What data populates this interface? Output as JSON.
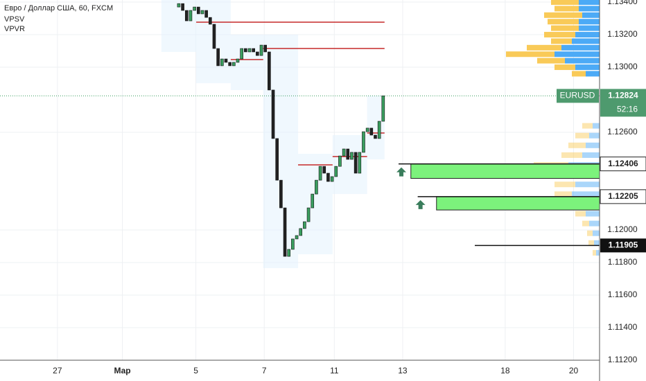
{
  "chart_data": {
    "type": "candlestick",
    "title": "Евро / Доллар США, 60, FXCM",
    "indicators": [
      "VPSV",
      "VPVR"
    ],
    "up_color": "#3a9e5f",
    "down_color": "#222222",
    "ylim": [
      1.112,
      1.13413
    ],
    "yticks": [
      {
        "value": 1.134,
        "label": "1.13400"
      },
      {
        "value": 1.132,
        "label": "1.13200"
      },
      {
        "value": 1.13,
        "label": "1.13000"
      },
      {
        "value": 1.126,
        "label": "1.12600"
      },
      {
        "value": 1.12,
        "label": "1.12000"
      },
      {
        "value": 1.118,
        "label": "1.11800"
      },
      {
        "value": 1.116,
        "label": "1.11600"
      },
      {
        "value": 1.114,
        "label": "1.11400"
      },
      {
        "value": 1.112,
        "label": "1.11200"
      }
    ],
    "xlim": [
      -1.68,
      15.86
    ],
    "xticks": [
      {
        "value": 0,
        "label": "27"
      },
      {
        "value": 1.9,
        "label": "Мар"
      },
      {
        "value": 4.05,
        "label": "5"
      },
      {
        "value": 6.05,
        "label": "7"
      },
      {
        "value": 8.1,
        "label": "11"
      },
      {
        "value": 10.1,
        "label": "13"
      },
      {
        "value": 13.1,
        "label": "18"
      },
      {
        "value": 15.1,
        "label": "20"
      }
    ],
    "x": [
      3.55,
      3.665,
      3.78,
      3.895,
      4.01,
      4.125,
      4.24,
      4.355,
      4.47,
      4.585,
      4.7,
      4.815,
      4.93,
      5.045,
      5.16,
      5.275,
      5.39,
      5.505,
      5.62,
      5.735,
      5.85,
      5.965,
      6.08,
      6.195,
      6.31,
      6.425,
      6.54,
      6.655,
      6.77,
      6.885,
      7.0,
      7.115,
      7.23,
      7.345,
      7.46,
      7.575,
      7.69,
      7.805,
      7.92,
      8.035,
      8.15,
      8.265,
      8.38,
      8.495,
      8.61,
      8.725,
      8.84,
      8.955,
      9.07,
      9.185,
      9.3,
      9.415,
      9.53
    ],
    "open": [
      1.1337,
      1.13391,
      1.13349,
      1.13285,
      1.13349,
      1.1337,
      1.13328,
      1.13349,
      1.13306,
      1.13264,
      1.13115,
      1.13009,
      1.13051,
      1.1303,
      1.13009,
      1.1303,
      1.13051,
      1.13115,
      1.13094,
      1.13115,
      1.13094,
      1.13072,
      1.13136,
      1.13094,
      1.1286,
      1.12562,
      1.12306,
      1.12136,
      1.11838,
      1.11881,
      1.11945,
      1.11966,
      1.12009,
      1.12051,
      1.12136,
      1.12221,
      1.12306,
      1.12391,
      1.12349,
      1.12298,
      1.12328,
      1.12391,
      1.12455,
      1.12498,
      1.12434,
      1.12477,
      1.12349,
      1.12477,
      1.12604,
      1.12626,
      1.12583,
      1.12562,
      1.12668
    ],
    "close": [
      1.13391,
      1.13349,
      1.13285,
      1.13349,
      1.1337,
      1.13328,
      1.13349,
      1.13306,
      1.13264,
      1.13115,
      1.13009,
      1.13051,
      1.1303,
      1.13009,
      1.1303,
      1.13051,
      1.13115,
      1.13094,
      1.13115,
      1.13094,
      1.13072,
      1.13136,
      1.13094,
      1.1286,
      1.12562,
      1.12306,
      1.12136,
      1.11838,
      1.11881,
      1.11945,
      1.11966,
      1.12009,
      1.12051,
      1.12136,
      1.12221,
      1.12306,
      1.12391,
      1.12349,
      1.12298,
      1.12328,
      1.12391,
      1.12455,
      1.12498,
      1.12434,
      1.12477,
      1.12349,
      1.12477,
      1.12604,
      1.12626,
      1.12583,
      1.12562,
      1.12668,
      1.12824
    ],
    "sessions": [
      {
        "x0": 3.04,
        "x1": 4.06,
        "high": 1.13413,
        "low": 1.13094
      },
      {
        "x0": 4.06,
        "x1": 5.07,
        "high": 1.13413,
        "low": 1.12902
      },
      {
        "x0": 5.07,
        "x1": 6.02,
        "high": 1.132,
        "low": 1.1286
      },
      {
        "x0": 6.02,
        "x1": 7.04,
        "high": 1.132,
        "low": 1.11766
      },
      {
        "x0": 7.04,
        "x1": 8.05,
        "high": 1.12468,
        "low": 1.11851
      },
      {
        "x0": 8.05,
        "x1": 9.06,
        "high": 1.12583,
        "low": 1.12221
      },
      {
        "x0": 9.06,
        "x1": 9.57,
        "high": 1.12826,
        "low": 1.12434
      }
    ],
    "poc_lines": [
      {
        "x0": 4.06,
        "x1": 9.57,
        "price": 1.13277
      },
      {
        "x0": 6.02,
        "x1": 9.57,
        "price": 1.13115
      },
      {
        "x0": 5.07,
        "x1": 6.02,
        "price": 1.13047
      },
      {
        "x0": 7.04,
        "x1": 8.05,
        "price": 1.124
      },
      {
        "x0": 8.05,
        "x1": 9.06,
        "price": 1.12451
      },
      {
        "x0": 9.06,
        "x1": 9.57,
        "price": 1.12596
      }
    ],
    "zones": [
      {
        "x0": 9.98,
        "box_x0": 10.34,
        "top": 1.12406,
        "bottom": 1.12317,
        "label": "1.12406"
      },
      {
        "x0": 10.54,
        "box_x0": 11.09,
        "top": 1.12205,
        "bottom": 1.12123,
        "label": "1.12205"
      }
    ],
    "level": {
      "x0": 12.21,
      "price": 1.11905,
      "label": "1.11905"
    },
    "last_price": {
      "symbol": "EURUSD",
      "value": 1.12824,
      "label": "1.12824",
      "countdown": "52:16"
    },
    "profile_xlim": [
      0,
      140
    ],
    "profile_colors": {
      "buy": "#42a5f5",
      "sell": "#f9c74f"
    },
    "profile": [
      {
        "price": 1.134,
        "buy": 30,
        "sell": 40
      },
      {
        "price": 1.1336,
        "buy": 30,
        "sell": 35
      },
      {
        "price": 1.1332,
        "buy": 25,
        "sell": 55
      },
      {
        "price": 1.1328,
        "buy": 30,
        "sell": 45
      },
      {
        "price": 1.1324,
        "buy": 30,
        "sell": 40
      },
      {
        "price": 1.132,
        "buy": 35,
        "sell": 45
      },
      {
        "price": 1.1316,
        "buy": 40,
        "sell": 30
      },
      {
        "price": 1.1312,
        "buy": 55,
        "sell": 50
      },
      {
        "price": 1.1308,
        "buy": 65,
        "sell": 70
      },
      {
        "price": 1.1304,
        "buy": 50,
        "sell": 40
      },
      {
        "price": 1.13,
        "buy": 35,
        "sell": 30
      },
      {
        "price": 1.1296,
        "buy": 20,
        "sell": 20
      },
      {
        "price": 1.1264,
        "buy": 10,
        "sell": 15
      },
      {
        "price": 1.1258,
        "buy": 15,
        "sell": 20
      },
      {
        "price": 1.1252,
        "buy": 20,
        "sell": 25
      },
      {
        "price": 1.1246,
        "buy": 25,
        "sell": 30
      },
      {
        "price": 1.124,
        "buy": 45,
        "sell": 50
      },
      {
        "price": 1.1234,
        "buy": 40,
        "sell": 60
      },
      {
        "price": 1.1228,
        "buy": 35,
        "sell": 30
      },
      {
        "price": 1.1222,
        "buy": 40,
        "sell": 25
      },
      {
        "price": 1.1216,
        "buy": 30,
        "sell": 20
      },
      {
        "price": 1.121,
        "buy": 20,
        "sell": 15
      },
      {
        "price": 1.1204,
        "buy": 15,
        "sell": 10
      },
      {
        "price": 1.1198,
        "buy": 10,
        "sell": 8
      },
      {
        "price": 1.1192,
        "buy": 8,
        "sell": 8
      },
      {
        "price": 1.1186,
        "buy": 5,
        "sell": 5
      }
    ]
  }
}
